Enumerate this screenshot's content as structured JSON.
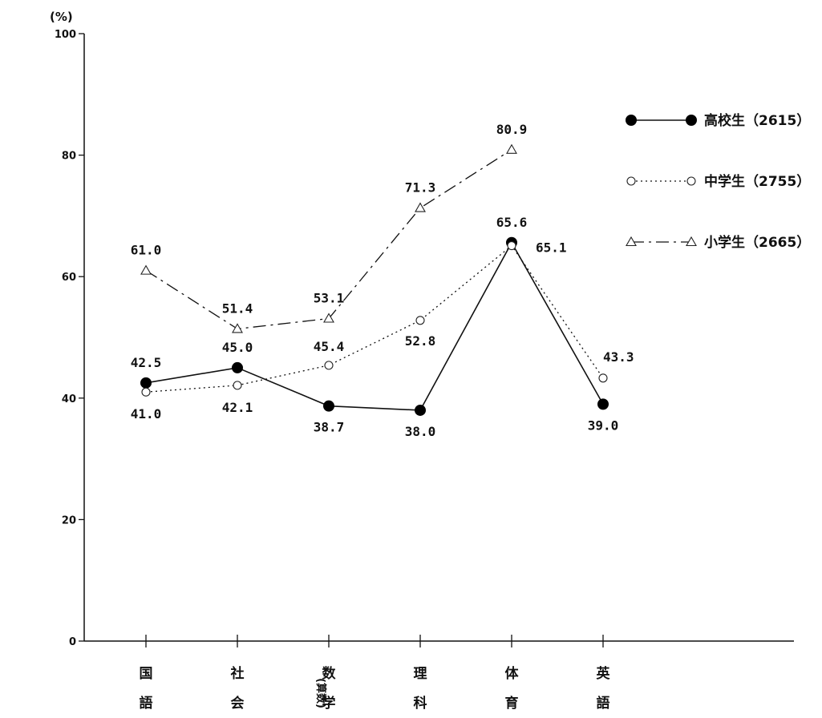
{
  "chart_data": {
    "type": "line",
    "unit_label": "(%)",
    "ylim": [
      0,
      100
    ],
    "yticks": [
      0,
      20,
      40,
      60,
      80,
      100
    ],
    "categories": [
      [
        "国",
        "語"
      ],
      [
        "社",
        "会"
      ],
      [
        "数",
        "学",
        "(算数)"
      ],
      [
        "理",
        "科"
      ],
      [
        "体",
        "育"
      ],
      [
        "英",
        "語"
      ]
    ],
    "series": [
      {
        "name": "高校生（2615）",
        "marker": "filled-circle",
        "line": "solid",
        "color": "#111111",
        "values": [
          42.5,
          45.0,
          38.7,
          38.0,
          65.6,
          39.0
        ],
        "labels": [
          "42.5",
          "45.0",
          "38.7",
          "38.0",
          "65.6",
          "39.0"
        ]
      },
      {
        "name": "中学生（2755）",
        "marker": "open-circle",
        "line": "dotted",
        "color": "#111111",
        "values": [
          41.0,
          42.1,
          45.4,
          52.8,
          65.1,
          43.3
        ],
        "labels": [
          "41.0",
          "42.1",
          "45.4",
          "52.8",
          "65.1",
          "43.3"
        ]
      },
      {
        "name": "小学生（2665）",
        "marker": "open-triangle",
        "line": "dash-dot",
        "color": "#111111",
        "values": [
          61.0,
          51.4,
          53.1,
          71.3,
          80.9,
          null
        ],
        "labels": [
          "61.0",
          "51.4",
          "53.1",
          "71.3",
          "80.9",
          ""
        ]
      }
    ],
    "legend_position": "top-right",
    "grid": false
  }
}
